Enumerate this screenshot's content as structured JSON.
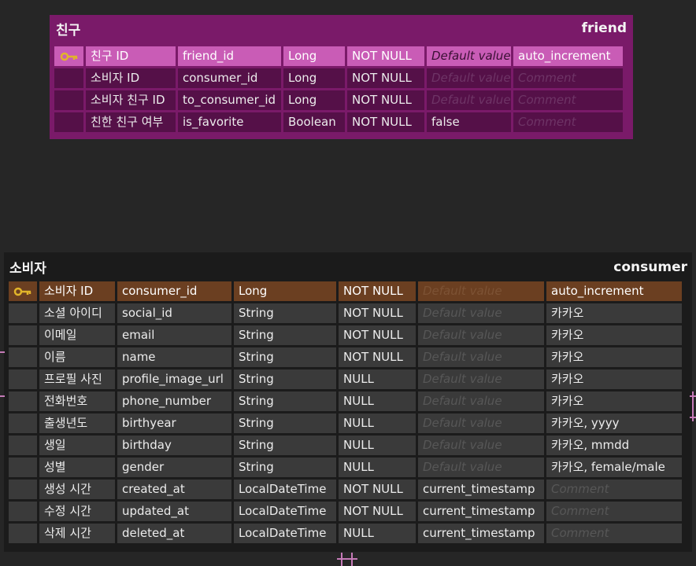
{
  "tables": [
    {
      "title": "친구",
      "name": "friend",
      "columns": [
        {
          "label": "친구 ID",
          "field": "friend_id",
          "type": "Long",
          "nullable": "NOT NULL",
          "default": "Default value",
          "comment": "auto_increment",
          "pk": true,
          "default_placeholder": true,
          "comment_placeholder": false
        },
        {
          "label": "소비자 ID",
          "field": "consumer_id",
          "type": "Long",
          "nullable": "NOT NULL",
          "default": "Default value",
          "comment": "Comment",
          "pk": false,
          "default_placeholder": true,
          "comment_placeholder": true
        },
        {
          "label": "소비자 친구 ID",
          "field": "to_consumer_id",
          "type": "Long",
          "nullable": "NOT NULL",
          "default": "Default value",
          "comment": "Comment",
          "pk": false,
          "default_placeholder": true,
          "comment_placeholder": true
        },
        {
          "label": "친한 친구 여부",
          "field": "is_favorite",
          "type": "Boolean",
          "nullable": "NOT NULL",
          "default": "false",
          "comment": "Comment",
          "pk": false,
          "default_placeholder": false,
          "comment_placeholder": true
        }
      ]
    },
    {
      "title": "소비자",
      "name": "consumer",
      "columns": [
        {
          "label": "소비자 ID",
          "field": "consumer_id",
          "type": "Long",
          "nullable": "NOT NULL",
          "default": "Default value",
          "comment": "auto_increment",
          "pk": true,
          "default_placeholder": true,
          "comment_placeholder": false
        },
        {
          "label": "소셜 아이디",
          "field": "social_id",
          "type": "String",
          "nullable": "NOT NULL",
          "default": "Default value",
          "comment": "카카오",
          "pk": false,
          "default_placeholder": true,
          "comment_placeholder": false
        },
        {
          "label": "이메일",
          "field": "email",
          "type": "String",
          "nullable": "NOT NULL",
          "default": "Default value",
          "comment": "카카오",
          "pk": false,
          "default_placeholder": true,
          "comment_placeholder": false
        },
        {
          "label": "이름",
          "field": "name",
          "type": "String",
          "nullable": "NOT NULL",
          "default": "Default value",
          "comment": "카카오",
          "pk": false,
          "default_placeholder": true,
          "comment_placeholder": false
        },
        {
          "label": "프로필 사진",
          "field": "profile_image_url",
          "type": "String",
          "nullable": "NULL",
          "default": "Default value",
          "comment": "카카오",
          "pk": false,
          "default_placeholder": true,
          "comment_placeholder": false
        },
        {
          "label": "전화번호",
          "field": "phone_number",
          "type": "String",
          "nullable": "NULL",
          "default": "Default value",
          "comment": "카카오",
          "pk": false,
          "default_placeholder": true,
          "comment_placeholder": false
        },
        {
          "label": "출생년도",
          "field": "birthyear",
          "type": "String",
          "nullable": "NULL",
          "default": "Default value",
          "comment": "카카오, yyyy",
          "pk": false,
          "default_placeholder": true,
          "comment_placeholder": false
        },
        {
          "label": "생일",
          "field": "birthday",
          "type": "String",
          "nullable": "NULL",
          "default": "Default value",
          "comment": "카카오, mmdd",
          "pk": false,
          "default_placeholder": true,
          "comment_placeholder": false
        },
        {
          "label": "성별",
          "field": "gender",
          "type": "String",
          "nullable": "NULL",
          "default": "Default value",
          "comment": "카카오, female/male",
          "pk": false,
          "default_placeholder": true,
          "comment_placeholder": false
        },
        {
          "label": "생성 시간",
          "field": "created_at",
          "type": "LocalDateTime",
          "nullable": "NOT NULL",
          "default": "current_timestamp",
          "comment": "Comment",
          "pk": false,
          "default_placeholder": false,
          "comment_placeholder": true
        },
        {
          "label": "수정 시간",
          "field": "updated_at",
          "type": "LocalDateTime",
          "nullable": "NOT NULL",
          "default": "current_timestamp",
          "comment": "Comment",
          "pk": false,
          "default_placeholder": false,
          "comment_placeholder": true
        },
        {
          "label": "삭제 시간",
          "field": "deleted_at",
          "type": "LocalDateTime",
          "nullable": "NULL",
          "default": "current_timestamp",
          "comment": "Comment",
          "pk": false,
          "default_placeholder": false,
          "comment_placeholder": true
        }
      ]
    }
  ],
  "colors": {
    "background": "#262626",
    "friend_table": "#7a1a69",
    "friend_pk_row": "#c95cb6",
    "consumer_table": "#1b1b1b",
    "consumer_pk_row": "#6b3f21",
    "key_icon": "#e1b52a",
    "relation_line": "#c67bb8"
  },
  "icons": {
    "primary_key": "key-icon"
  }
}
